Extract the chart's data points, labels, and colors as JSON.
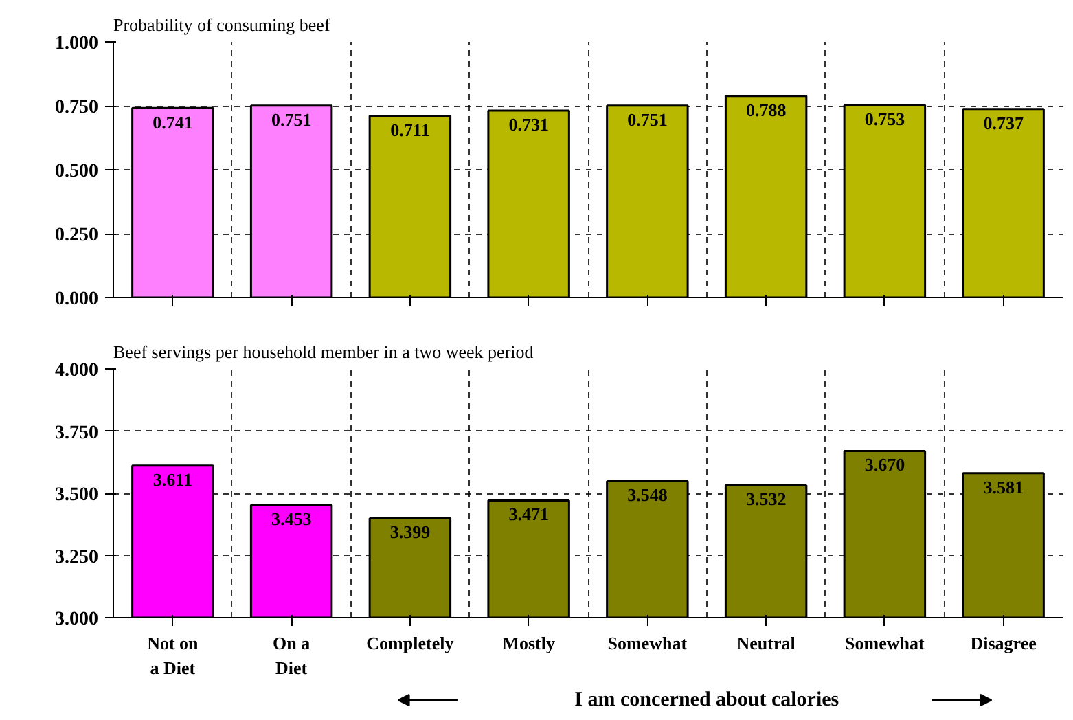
{
  "chart_data": [
    {
      "type": "bar",
      "title": "Probability of consuming beef",
      "categories": [
        null,
        null,
        null,
        null,
        null,
        null,
        null,
        null
      ],
      "values": [
        0.741,
        0.751,
        0.711,
        0.731,
        0.751,
        0.788,
        0.753,
        0.737
      ],
      "value_labels": [
        "0.741",
        "0.751",
        "0.711",
        "0.731",
        "0.751",
        "0.788",
        "0.753",
        "0.737"
      ],
      "colors": [
        "#ff80ff",
        "#ff80ff",
        "#b8b800",
        "#b8b800",
        "#b8b800",
        "#b8b800",
        "#b8b800",
        "#b8b800"
      ],
      "ylim": [
        0,
        1
      ],
      "yticks": [
        {
          "value": 0,
          "label": "0.000"
        },
        {
          "value": 0.25,
          "label": "0.250"
        },
        {
          "value": 0.5,
          "label": "0.500"
        },
        {
          "value": 0.75,
          "label": "0.750"
        },
        {
          "value": 1,
          "label": "1.000"
        }
      ],
      "grid": true,
      "tick_labels": "y"
    },
    {
      "type": "bar",
      "title": "Beef servings per household member in a two week period",
      "xlabel": "I am concerned about calories",
      "categories": [
        "Not on\na Diet",
        "On a\nDiet",
        "Completely",
        "Mostly",
        "Somewhat",
        "Neutral",
        "Somewhat",
        "Disagree"
      ],
      "values": [
        3.611,
        3.453,
        3.399,
        3.471,
        3.548,
        3.532,
        3.67,
        3.581
      ],
      "value_labels": [
        "3.611",
        "3.453",
        "3.399",
        "3.471",
        "3.548",
        "3.532",
        "3.670",
        "3.581"
      ],
      "colors": [
        "#ff00ff",
        "#ff00ff",
        "#808000",
        "#808000",
        "#808000",
        "#808000",
        "#808000",
        "#808000"
      ],
      "ylim": [
        3,
        4
      ],
      "yticks": [
        {
          "value": 3,
          "label": "3.000"
        },
        {
          "value": 3.25,
          "label": "3.250"
        },
        {
          "value": 3.5,
          "label": "3.500"
        },
        {
          "value": 3.75,
          "label": "3.750"
        },
        {
          "value": 4,
          "label": "4.000"
        }
      ],
      "grid": true
    }
  ]
}
